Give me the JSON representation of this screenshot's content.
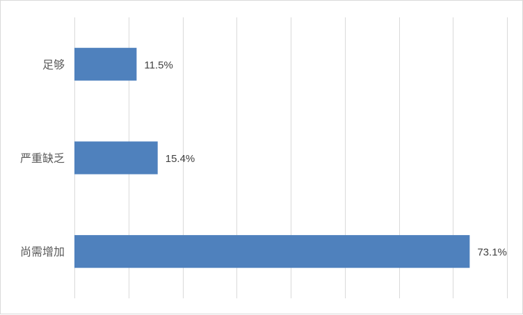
{
  "chart_data": {
    "type": "bar",
    "orientation": "horizontal",
    "categories": [
      "足够",
      "严重缺乏",
      "尚需增加"
    ],
    "values": [
      11.5,
      15.4,
      73.1
    ],
    "data_labels": [
      "11.5%",
      "15.4%",
      "73.1%"
    ],
    "unit": "%",
    "xlim": [
      0,
      80
    ],
    "grid": true,
    "legend": "none",
    "bar_color": "#4f81bd",
    "grid_color": "#d9d9d9"
  }
}
